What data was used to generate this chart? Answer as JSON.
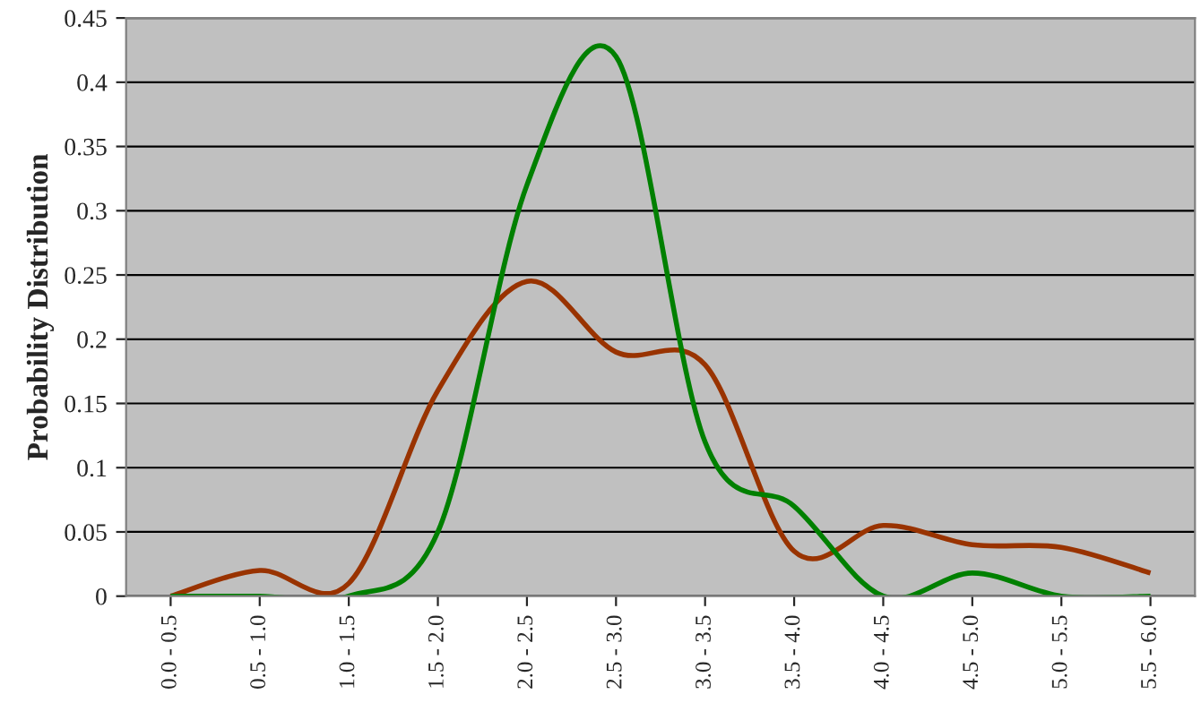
{
  "chart_data": {
    "type": "line",
    "ylabel": "Probability Distribution",
    "categories": [
      "0.0 - 0.5",
      "0.5 - 1.0",
      "1.0 - 1.5",
      "1.5 - 2.0",
      "2.0 - 2.5",
      "2.5 - 3.0",
      "3.0 - 3.5",
      "3.5 - 4.0",
      "4.0 - 4.5",
      "4.5 - 5.0",
      "5.0 - 5.5",
      "5.5 - 6.0"
    ],
    "series": [
      {
        "color": "#993300",
        "values": [
          0,
          0.02,
          0.01,
          0.16,
          0.245,
          0.19,
          0.18,
          0.035,
          0.055,
          0.04,
          0.038,
          0.018
        ]
      },
      {
        "color": "#008000",
        "values": [
          0,
          0,
          0,
          0.05,
          0.32,
          0.42,
          0.12,
          0.07,
          0,
          0.018,
          0,
          0
        ]
      }
    ],
    "ylim": [
      0,
      0.45
    ],
    "yticks": [
      0,
      0.05,
      0.1,
      0.15,
      0.2,
      0.25,
      0.3,
      0.35,
      0.4,
      0.45
    ],
    "grid": "y",
    "legend": false,
    "marker": "none",
    "line_style": "solid"
  }
}
